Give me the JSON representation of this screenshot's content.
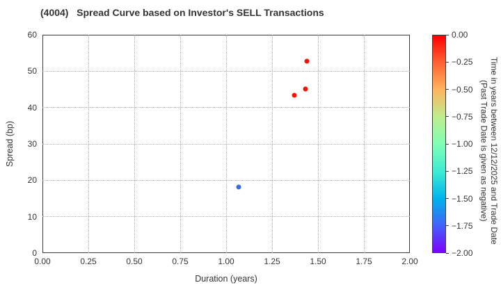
{
  "chart_data": {
    "type": "scatter",
    "title": "(4004)   Spread Curve based on Investor's SELL Transactions",
    "xlabel": "Duration (years)",
    "ylabel": "Spread (bp)",
    "xlim": [
      0,
      2
    ],
    "ylim": [
      0,
      60
    ],
    "grid": true,
    "legend": "none",
    "xticks": [
      {
        "v": 0,
        "label": "0.00"
      },
      {
        "v": 0.25,
        "label": "0.25"
      },
      {
        "v": 0.5,
        "label": "0.50"
      },
      {
        "v": 0.75,
        "label": "0.75"
      },
      {
        "v": 1,
        "label": "1.00"
      },
      {
        "v": 1.25,
        "label": "1.25"
      },
      {
        "v": 1.5,
        "label": "1.50"
      },
      {
        "v": 1.75,
        "label": "1.75"
      },
      {
        "v": 2,
        "label": "2.00"
      }
    ],
    "yticks": [
      {
        "v": 0,
        "label": "0"
      },
      {
        "v": 10,
        "label": "10"
      },
      {
        "v": 20,
        "label": "20"
      },
      {
        "v": 30,
        "label": "30"
      },
      {
        "v": 40,
        "label": "40"
      },
      {
        "v": 50,
        "label": "50"
      },
      {
        "v": 60,
        "label": "60"
      }
    ],
    "points": [
      {
        "x": 1.07,
        "y": 18.2,
        "color": "#3c6ae6",
        "time_years_approx": -1.7
      },
      {
        "x": 1.37,
        "y": 43.4,
        "color": "#ff0f00",
        "time_years_approx": -0.05
      },
      {
        "x": 1.43,
        "y": 45.1,
        "color": "#ff0f00",
        "time_years_approx": -0.05
      },
      {
        "x": 1.44,
        "y": 52.7,
        "color": "#ff0f00",
        "time_years_approx": -0.05
      }
    ],
    "colorbar": {
      "label_line1": "Time in years between 12/12/2025 and Trade Date",
      "label_line2": "(Past Trade Date is given as negative)",
      "range_top_to_bottom": [
        0,
        -2
      ],
      "ticks": [
        "0.00",
        "−0.25",
        "−0.50",
        "−0.75",
        "−1.00",
        "−1.25",
        "−1.50",
        "−1.75",
        "−2.00"
      ],
      "gradient_top_to_bottom": [
        {
          "pos": 0,
          "color": "#ff0000"
        },
        {
          "pos": 0.125,
          "color": "#ff6232"
        },
        {
          "pos": 0.25,
          "color": "#ffb461"
        },
        {
          "pos": 0.375,
          "color": "#bfec8e"
        },
        {
          "pos": 0.5,
          "color": "#80ffb4"
        },
        {
          "pos": 0.625,
          "color": "#40ecd4"
        },
        {
          "pos": 0.75,
          "color": "#00b4ec"
        },
        {
          "pos": 0.875,
          "color": "#4062fa"
        },
        {
          "pos": 1,
          "color": "#8000ff"
        }
      ]
    }
  },
  "colors": {
    "background": "#ffffff",
    "axis": "#3a3a3a",
    "grid": "#b0b0b0",
    "text": "#333333"
  }
}
